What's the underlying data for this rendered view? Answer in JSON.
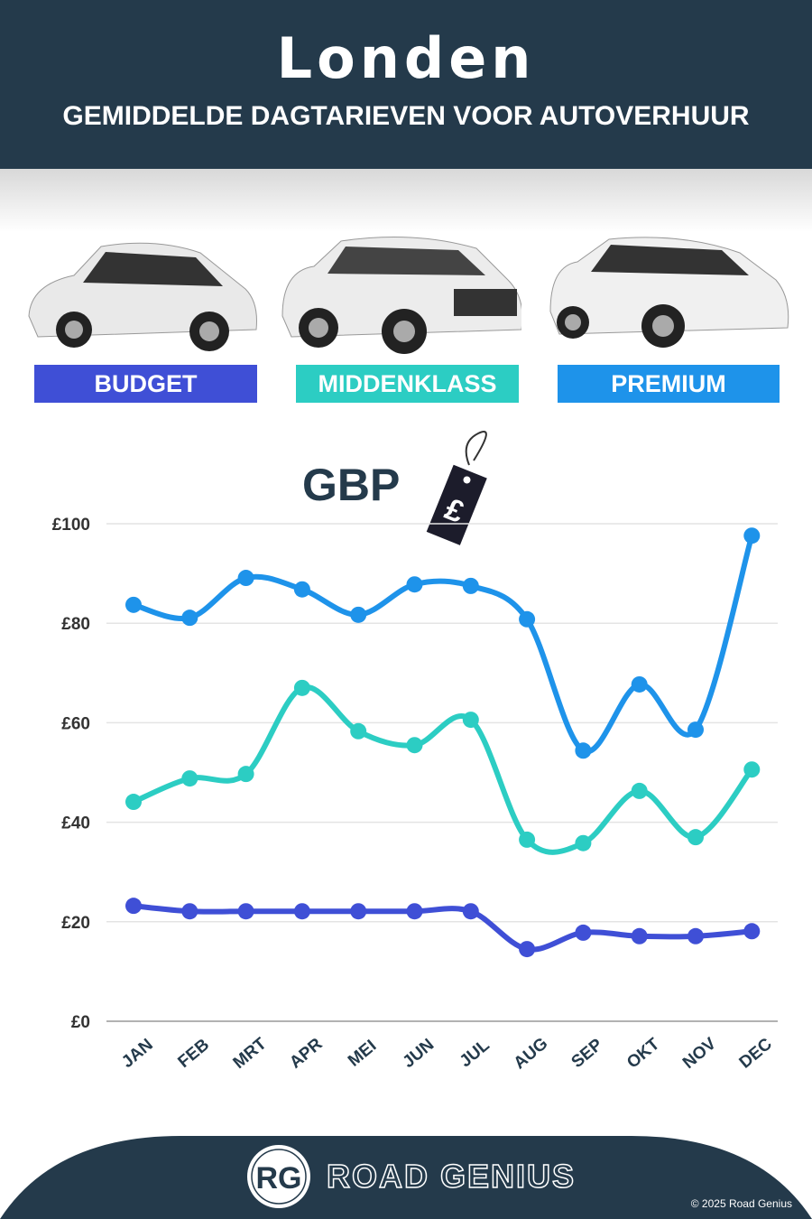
{
  "header": {
    "title": "Londen",
    "subtitle": "GEMIDDELDE DAGTARIEVEN VOOR AUTOVERHUUR"
  },
  "categories_legend": [
    {
      "label": "BUDGET",
      "color": "#3f4fd6"
    },
    {
      "label": "MIDDENKLASS",
      "color": "#2ccdc3"
    },
    {
      "label": "PREMIUM",
      "color": "#1e93ea"
    }
  ],
  "currency": {
    "label": "GBP",
    "tag_symbol": "£"
  },
  "chart_data": {
    "type": "line",
    "title": "",
    "xlabel": "",
    "ylabel": "",
    "categories": [
      "JAN",
      "FEB",
      "MRT",
      "APR",
      "MEI",
      "JUN",
      "JUL",
      "AUG",
      "SEP",
      "OKT",
      "NOV",
      "DEC"
    ],
    "ylim": [
      0,
      100
    ],
    "yticks": [
      0,
      20,
      40,
      60,
      80,
      100
    ],
    "ytick_labels": [
      "£0",
      "£20",
      "£40",
      "£60",
      "£80",
      "£100"
    ],
    "grid": true,
    "series": [
      {
        "name": "PREMIUM",
        "color": "#1e93ea",
        "values": [
          83.7,
          81.1,
          89.1,
          86.8,
          81.7,
          87.8,
          87.5,
          80.8,
          54.4,
          67.7,
          58.6,
          97.6
        ]
      },
      {
        "name": "MIDDENKLASS",
        "color": "#2ccdc3",
        "values": [
          44.1,
          48.8,
          49.7,
          67.0,
          58.3,
          55.5,
          60.6,
          36.5,
          35.8,
          46.3,
          37.0,
          50.6
        ]
      },
      {
        "name": "BUDGET",
        "color": "#3f4fd6",
        "values": [
          23.2,
          22.1,
          22.1,
          22.1,
          22.1,
          22.1,
          22.1,
          14.5,
          17.8,
          17.1,
          17.1,
          18.1
        ]
      }
    ]
  },
  "footer": {
    "brand": "ROAD GENIUS",
    "logo_text": "RG",
    "copyright": "© 2025 Road Genius"
  }
}
